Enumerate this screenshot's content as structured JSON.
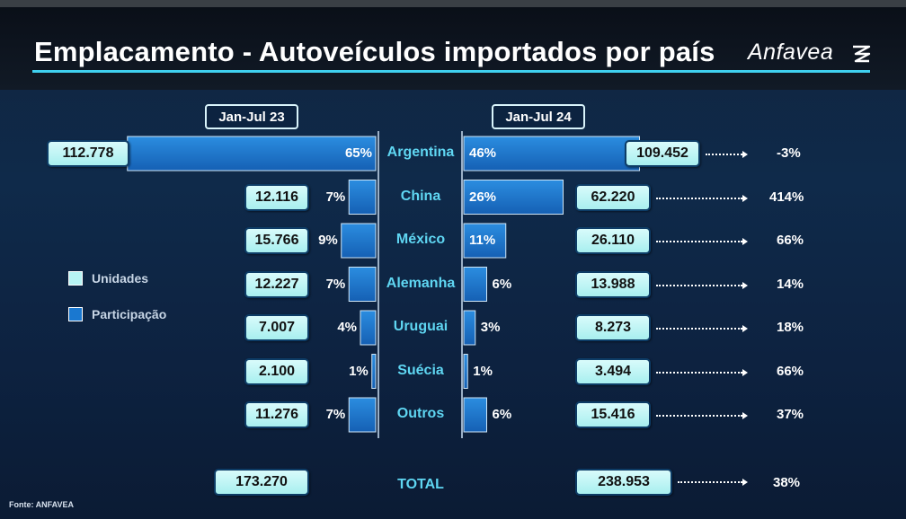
{
  "header": {
    "title": "Emplacamento - Autoveículos importados por país",
    "logo_text": "Anfavea"
  },
  "legend": {
    "units_label": "Unidades",
    "share_label": "Participação",
    "units_color": "#b7f4f4",
    "share_color": "#1a78d0"
  },
  "source": "Fonte: ANFAVEA",
  "chart_data": {
    "type": "bar",
    "periods": [
      "Jan-Jul 23",
      "Jan-Jul 24"
    ],
    "categories": [
      "Argentina",
      "China",
      "México",
      "Alemanha",
      "Uruguai",
      "Suécia",
      "Outros"
    ],
    "series": [
      {
        "name": "Jan-Jul 23",
        "units": [
          112778,
          12116,
          15766,
          12227,
          7007,
          2100,
          11276
        ],
        "units_labels": [
          "112.778",
          "12.116",
          "15.766",
          "12.227",
          "7.007",
          "2.100",
          "11.276"
        ],
        "share": [
          65,
          7,
          9,
          7,
          4,
          1,
          7
        ],
        "share_labels": [
          "65%",
          "7%",
          "9%",
          "7%",
          "4%",
          "1%",
          "7%"
        ]
      },
      {
        "name": "Jan-Jul 24",
        "units": [
          109452,
          62220,
          26110,
          13988,
          8273,
          3494,
          15416
        ],
        "units_labels": [
          "109.452",
          "62.220",
          "26.110",
          "13.988",
          "8.273",
          "3.494",
          "15.416"
        ],
        "share": [
          46,
          26,
          11,
          6,
          3,
          1,
          6
        ],
        "share_labels": [
          "46%",
          "26%",
          "11%",
          "6%",
          "3%",
          "1%",
          "6%"
        ]
      }
    ],
    "variation": [
      "-3%",
      "414%",
      "66%",
      "14%",
      "18%",
      "66%",
      "37%"
    ],
    "total": {
      "label": "TOTAL",
      "jan_jul_23": "173.270",
      "jan_jul_24": "238.953",
      "variation": "38%"
    },
    "unit_color": "#b7f4f4",
    "bar_color": "#1a78d0"
  }
}
